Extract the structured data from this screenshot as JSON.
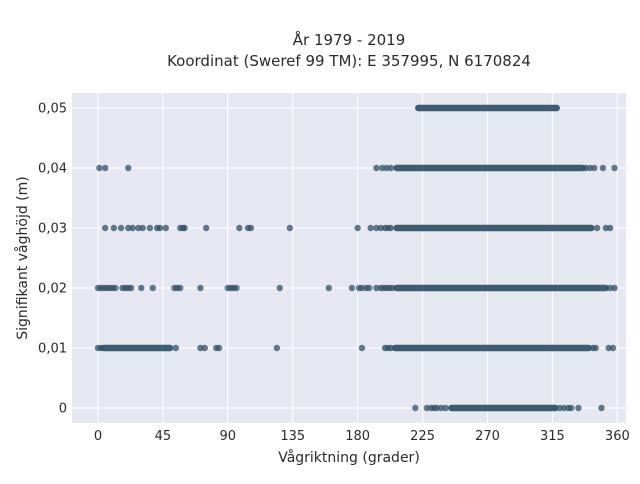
{
  "chart_data": {
    "type": "scatter",
    "title_line1": "År 1979 - 2019",
    "title_line2": "Koordinat (Sweref 99 TM): E 357995, N 6170824",
    "xlabel": "Vågriktning (grader)",
    "ylabel": "Signifikant våghöjd (m)",
    "xlim": [
      -18,
      366
    ],
    "ylim": [
      -0.0025,
      0.0525
    ],
    "x_ticks": [
      {
        "value": 0,
        "label": "0"
      },
      {
        "value": 45,
        "label": "45"
      },
      {
        "value": 90,
        "label": "90"
      },
      {
        "value": 135,
        "label": "135"
      },
      {
        "value": 180,
        "label": "180"
      },
      {
        "value": 225,
        "label": "225"
      },
      {
        "value": 270,
        "label": "270"
      },
      {
        "value": 315,
        "label": "315"
      },
      {
        "value": 360,
        "label": "360"
      }
    ],
    "y_ticks": [
      {
        "value": 0,
        "label": "0"
      },
      {
        "value": 0.01,
        "label": "0,01"
      },
      {
        "value": 0.02,
        "label": "0,02"
      },
      {
        "value": 0.03,
        "label": "0,03"
      },
      {
        "value": 0.04,
        "label": "0,04"
      },
      {
        "value": 0.05,
        "label": "0,05"
      }
    ],
    "grid": true,
    "background": "#e5e8f0",
    "marker_color": "#2f4f66",
    "series": [
      {
        "y": 0.05,
        "points": [],
        "dense_ranges": [
          [
            222,
            318
          ]
        ]
      },
      {
        "y": 0.04,
        "points": [
          1,
          5,
          21,
          193,
          197,
          200,
          203,
          338,
          341,
          344,
          350,
          358
        ],
        "dense_ranges": [
          [
            207,
            336
          ]
        ]
      },
      {
        "y": 0.03,
        "points": [
          5,
          11,
          16,
          21,
          24,
          28,
          31,
          36,
          41,
          43,
          47,
          57,
          59,
          60,
          75,
          98,
          104,
          106,
          133,
          180,
          189,
          193,
          196,
          199,
          201,
          203,
          346,
          352,
          355
        ],
        "dense_ranges": [
          [
            207,
            342
          ]
        ]
      },
      {
        "y": 0.02,
        "points": [
          0,
          2,
          4,
          6,
          8,
          10,
          12,
          17,
          19,
          21,
          23,
          30,
          38,
          53,
          55,
          57,
          71,
          90,
          92,
          94,
          96,
          126,
          160,
          176,
          181,
          183,
          186,
          188,
          193,
          196,
          198,
          200,
          202,
          204,
          355,
          358
        ],
        "dense_ranges": [
          [
            207,
            352
          ]
        ]
      },
      {
        "y": 0.01,
        "points": [
          0,
          2,
          54,
          71,
          74,
          82,
          84,
          124,
          183,
          199,
          201,
          203,
          343,
          345,
          354,
          357
        ],
        "dense_ranges": [
          [
            4,
            50
          ],
          [
            206,
            340
          ]
        ]
      },
      {
        "y": 0,
        "points": [
          220,
          228,
          231,
          233,
          235,
          238,
          241,
          320,
          323,
          326,
          328,
          333,
          349
        ],
        "dense_ranges": [
          [
            245,
            317
          ]
        ]
      }
    ]
  }
}
